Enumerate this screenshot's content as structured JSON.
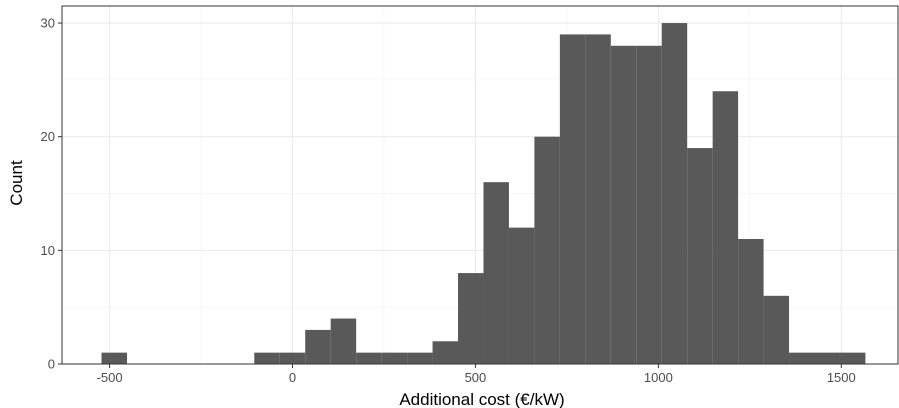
{
  "chart_data": {
    "type": "bar",
    "histogram": true,
    "xlabel": "Additional cost (€/kW)",
    "ylabel": "Count",
    "xlim": [
      -630,
      1655
    ],
    "ylim": [
      0,
      31.5
    ],
    "x_ticks": [
      -500,
      0,
      500,
      1000,
      1500
    ],
    "y_ticks": [
      0,
      10,
      20,
      30
    ],
    "bin_width": 69.6,
    "bins": [
      {
        "x_start": -522,
        "x_end": -452.4,
        "count": 1
      },
      {
        "x_start": -104.4,
        "x_end": -34.8,
        "count": 1
      },
      {
        "x_start": -34.8,
        "x_end": 34.8,
        "count": 1
      },
      {
        "x_start": 34.8,
        "x_end": 104.4,
        "count": 3
      },
      {
        "x_start": 104.4,
        "x_end": 174.0,
        "count": 4
      },
      {
        "x_start": 174.0,
        "x_end": 243.6,
        "count": 1
      },
      {
        "x_start": 243.6,
        "x_end": 313.2,
        "count": 1
      },
      {
        "x_start": 313.2,
        "x_end": 382.8,
        "count": 1
      },
      {
        "x_start": 382.8,
        "x_end": 452.4,
        "count": 2
      },
      {
        "x_start": 452.4,
        "x_end": 522.0,
        "count": 8
      },
      {
        "x_start": 522.0,
        "x_end": 591.6,
        "count": 16
      },
      {
        "x_start": 591.6,
        "x_end": 661.2,
        "count": 12
      },
      {
        "x_start": 661.2,
        "x_end": 730.8,
        "count": 20
      },
      {
        "x_start": 730.8,
        "x_end": 800.4,
        "count": 29
      },
      {
        "x_start": 800.4,
        "x_end": 870.0,
        "count": 29
      },
      {
        "x_start": 870.0,
        "x_end": 939.6,
        "count": 28
      },
      {
        "x_start": 939.6,
        "x_end": 1009.2,
        "count": 28
      },
      {
        "x_start": 1009.2,
        "x_end": 1078.8,
        "count": 30
      },
      {
        "x_start": 1078.8,
        "x_end": 1148.4,
        "count": 19
      },
      {
        "x_start": 1148.4,
        "x_end": 1218.0,
        "count": 24
      },
      {
        "x_start": 1218.0,
        "x_end": 1287.6,
        "count": 11
      },
      {
        "x_start": 1287.6,
        "x_end": 1357.2,
        "count": 6
      },
      {
        "x_start": 1357.2,
        "x_end": 1426.8,
        "count": 1
      },
      {
        "x_start": 1426.8,
        "x_end": 1496.4,
        "count": 1
      },
      {
        "x_start": 1496.4,
        "x_end": 1566.0,
        "count": 1
      }
    ],
    "grid": true,
    "colors": {
      "bar_fill": "#595959",
      "panel_border": "#333333",
      "grid_major": "#ebebeb",
      "grid_minor": "#f2f2f2",
      "tick_text": "#4d4d4d"
    }
  }
}
